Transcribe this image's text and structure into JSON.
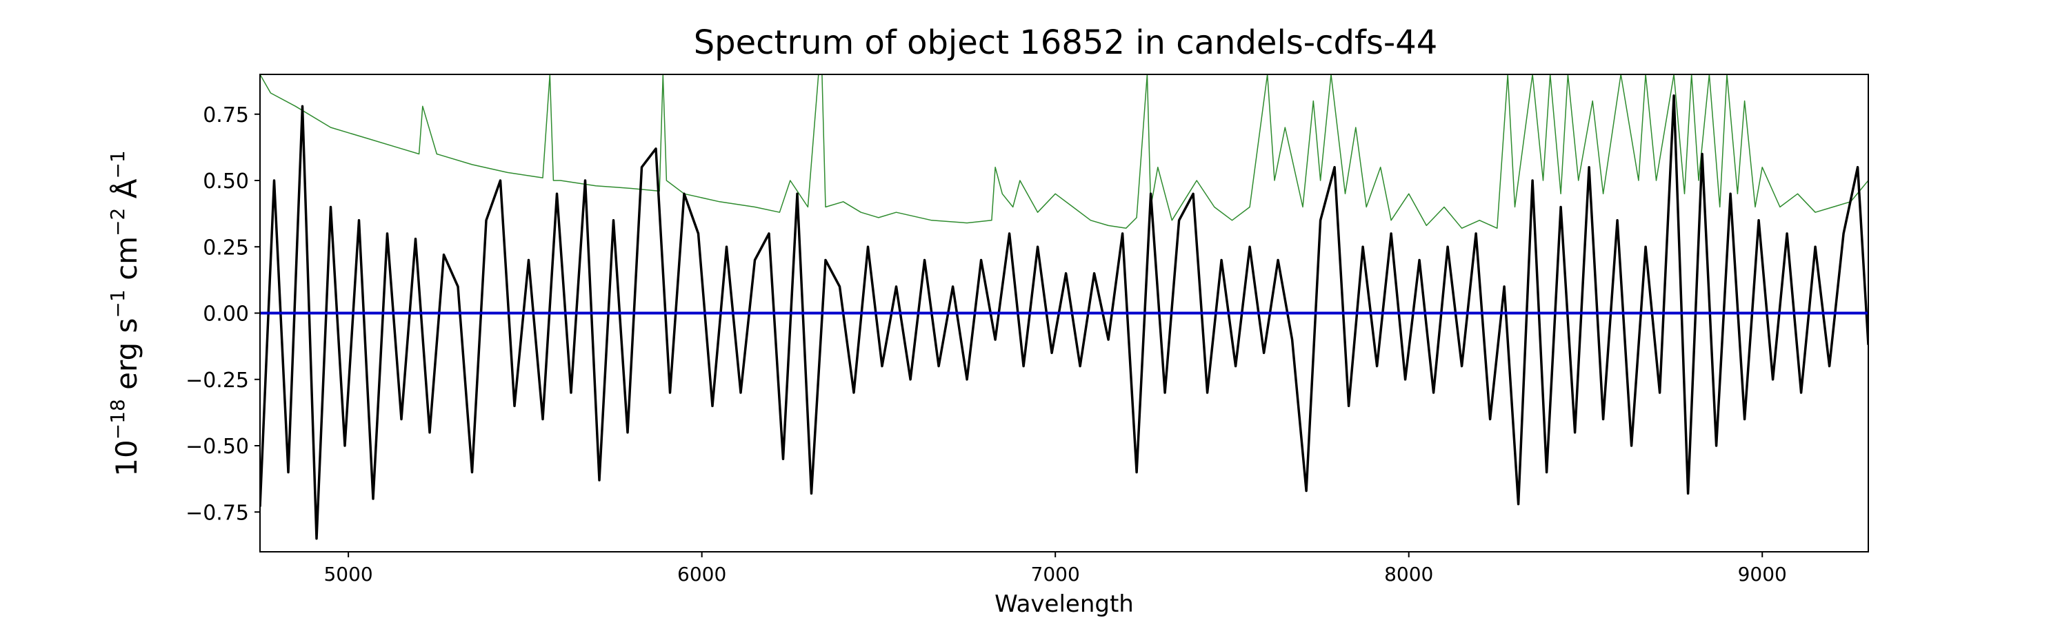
{
  "chart_data": {
    "type": "line",
    "title": "Spectrum of object 16852 in candels-cdfs-44",
    "xlabel": "Wavelength",
    "ylabel": {
      "prefix": "10",
      "exp": "−18",
      "unit1": " erg s",
      "unit1_exp": "−1",
      "unit2": " cm",
      "unit2_exp": "−2",
      "unit3": " Å",
      "unit3_exp": "−1"
    },
    "xlim": [
      4750,
      9300
    ],
    "ylim": [
      -0.9,
      0.9
    ],
    "x_ticks": [
      5000,
      6000,
      7000,
      8000,
      9000
    ],
    "x_tick_labels": [
      "5000",
      "6000",
      "7000",
      "8000",
      "9000"
    ],
    "y_ticks": [
      -0.75,
      -0.5,
      -0.25,
      0.0,
      0.25,
      0.5,
      0.75
    ],
    "y_tick_labels": [
      "−0.75",
      "−0.50",
      "−0.25",
      "0.00",
      "0.25",
      "0.50",
      "0.75"
    ],
    "grid": false,
    "series": [
      {
        "color": "#000000",
        "style": "flux",
        "x": [
          4750,
          4790,
          4830,
          4870,
          4910,
          4950,
          4990,
          5030,
          5070,
          5110,
          5150,
          5190,
          5230,
          5270,
          5310,
          5350,
          5390,
          5430,
          5470,
          5510,
          5550,
          5590,
          5630,
          5670,
          5710,
          5750,
          5790,
          5830,
          5870,
          5910,
          5950,
          5990,
          6030,
          6070,
          6110,
          6150,
          6190,
          6230,
          6270,
          6310,
          6350,
          6390,
          6430,
          6470,
          6510,
          6550,
          6590,
          6630,
          6670,
          6710,
          6750,
          6790,
          6830,
          6870,
          6910,
          6950,
          6990,
          7030,
          7070,
          7110,
          7150,
          7190,
          7230,
          7270,
          7310,
          7350,
          7390,
          7430,
          7470,
          7510,
          7550,
          7590,
          7630,
          7670,
          7710,
          7750,
          7790,
          7830,
          7870,
          7910,
          7950,
          7990,
          8030,
          8070,
          8110,
          8150,
          8190,
          8230,
          8270,
          8310,
          8350,
          8390,
          8430,
          8470,
          8510,
          8550,
          8590,
          8630,
          8670,
          8710,
          8750,
          8790,
          8830,
          8870,
          8910,
          8950,
          8990,
          9030,
          9070,
          9110,
          9150,
          9190,
          9230,
          9270,
          9300
        ],
        "y": [
          -0.73,
          0.5,
          -0.6,
          0.78,
          -0.85,
          0.4,
          -0.5,
          0.35,
          -0.7,
          0.3,
          -0.4,
          0.28,
          -0.45,
          0.22,
          0.1,
          -0.6,
          0.35,
          0.5,
          -0.35,
          0.2,
          -0.4,
          0.45,
          -0.3,
          0.5,
          -0.63,
          0.35,
          -0.45,
          0.55,
          0.62,
          -0.3,
          0.45,
          0.3,
          -0.35,
          0.25,
          -0.3,
          0.2,
          0.3,
          -0.55,
          0.45,
          -0.68,
          0.2,
          0.1,
          -0.3,
          0.25,
          -0.2,
          0.1,
          -0.25,
          0.2,
          -0.2,
          0.1,
          -0.25,
          0.2,
          -0.1,
          0.3,
          -0.2,
          0.25,
          -0.15,
          0.15,
          -0.2,
          0.15,
          -0.1,
          0.3,
          -0.6,
          0.45,
          -0.3,
          0.35,
          0.45,
          -0.3,
          0.2,
          -0.2,
          0.25,
          -0.15,
          0.2,
          -0.1,
          -0.67,
          0.35,
          0.55,
          -0.35,
          0.25,
          -0.2,
          0.3,
          -0.25,
          0.2,
          -0.3,
          0.25,
          -0.2,
          0.3,
          -0.4,
          0.1,
          -0.72,
          0.5,
          -0.6,
          0.4,
          -0.45,
          0.55,
          -0.4,
          0.35,
          -0.5,
          0.25,
          -0.3,
          0.82,
          -0.68,
          0.6,
          -0.5,
          0.45,
          -0.4,
          0.35,
          -0.25,
          0.3,
          -0.3,
          0.25,
          -0.2,
          0.3,
          0.55,
          -0.12
        ]
      },
      {
        "color": "#2e8b2e",
        "style": "error",
        "x": [
          4750,
          4780,
          4850,
          4950,
          5050,
          5150,
          5200,
          5210,
          5250,
          5350,
          5450,
          5550,
          5570,
          5580,
          5600,
          5700,
          5800,
          5880,
          5890,
          5900,
          5950,
          6050,
          6150,
          6220,
          6250,
          6300,
          6330,
          6340,
          6350,
          6400,
          6450,
          6500,
          6550,
          6650,
          6750,
          6820,
          6830,
          6850,
          6880,
          6900,
          6950,
          7000,
          7050,
          7100,
          7150,
          7200,
          7230,
          7260,
          7270,
          7290,
          7330,
          7400,
          7450,
          7500,
          7550,
          7600,
          7620,
          7650,
          7700,
          7730,
          7750,
          7780,
          7820,
          7850,
          7880,
          7920,
          7950,
          8000,
          8050,
          8100,
          8150,
          8200,
          8250,
          8280,
          8300,
          8350,
          8380,
          8400,
          8430,
          8450,
          8480,
          8520,
          8550,
          8600,
          8650,
          8670,
          8700,
          8750,
          8780,
          8800,
          8820,
          8850,
          8880,
          8900,
          8930,
          8950,
          8980,
          9000,
          9050,
          9100,
          9150,
          9200,
          9250,
          9300
        ],
        "y": [
          0.9,
          0.83,
          0.78,
          0.7,
          0.66,
          0.62,
          0.6,
          0.78,
          0.6,
          0.56,
          0.53,
          0.51,
          0.9,
          0.5,
          0.5,
          0.48,
          0.47,
          0.46,
          0.9,
          0.5,
          0.45,
          0.42,
          0.4,
          0.38,
          0.5,
          0.4,
          0.9,
          0.9,
          0.4,
          0.42,
          0.38,
          0.36,
          0.38,
          0.35,
          0.34,
          0.35,
          0.55,
          0.45,
          0.4,
          0.5,
          0.38,
          0.45,
          0.4,
          0.35,
          0.33,
          0.32,
          0.36,
          0.9,
          0.4,
          0.55,
          0.35,
          0.5,
          0.4,
          0.35,
          0.4,
          0.9,
          0.5,
          0.7,
          0.4,
          0.8,
          0.5,
          0.9,
          0.45,
          0.7,
          0.4,
          0.55,
          0.35,
          0.45,
          0.33,
          0.4,
          0.32,
          0.35,
          0.32,
          0.9,
          0.4,
          0.9,
          0.5,
          0.9,
          0.45,
          0.9,
          0.5,
          0.8,
          0.45,
          0.9,
          0.5,
          0.9,
          0.5,
          0.9,
          0.45,
          0.9,
          0.5,
          0.9,
          0.4,
          0.9,
          0.45,
          0.8,
          0.4,
          0.55,
          0.4,
          0.45,
          0.38,
          0.4,
          0.42,
          0.5
        ]
      },
      {
        "color": "#0000cc",
        "style": "zero",
        "x": [
          4750,
          9300
        ],
        "y": [
          0.0,
          0.0
        ]
      }
    ]
  }
}
